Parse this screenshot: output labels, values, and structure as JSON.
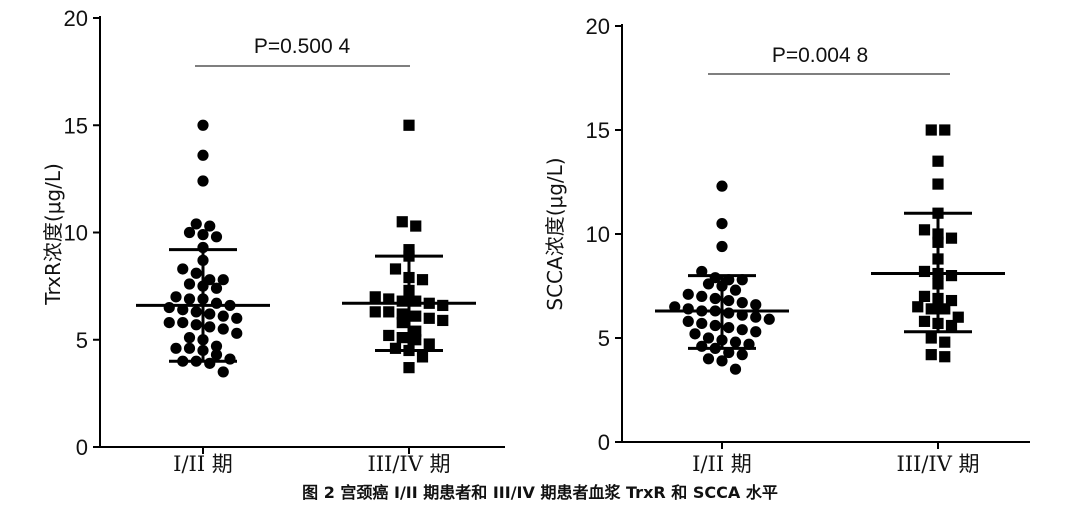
{
  "caption": "图 2   宫颈癌 I/II 期患者和 III/IV 期患者血浆 TrxR 和 SCCA 水平",
  "chart_data": [
    {
      "type": "scatter",
      "ylabel": "TrxR浓度(μg/L)",
      "ylim": [
        0,
        20
      ],
      "yticks": [
        "0",
        "5",
        "10",
        "15",
        "20"
      ],
      "categories": [
        "I/II 期",
        "III/IV 期"
      ],
      "p_label": "P=0.500 4",
      "series": [
        {
          "category": "I/II 期",
          "marker": "circle",
          "mean": 6.6,
          "upper": 9.2,
          "lower": 4.0,
          "values": [
            15.0,
            13.6,
            12.4,
            10.4,
            10.3,
            10.0,
            9.9,
            9.8,
            9.3,
            8.7,
            8.3,
            8.1,
            7.8,
            7.8,
            7.6,
            7.5,
            7.4,
            7.0,
            6.9,
            6.9,
            6.7,
            6.6,
            6.5,
            6.4,
            6.3,
            6.2,
            6.1,
            6.0,
            5.8,
            5.8,
            5.7,
            5.6,
            5.5,
            5.3,
            5.1,
            5.0,
            4.7,
            4.6,
            4.6,
            4.5,
            4.3,
            4.1,
            4.0,
            4.0,
            3.9,
            3.5
          ]
        },
        {
          "category": "III/IV 期",
          "marker": "square",
          "mean": 6.7,
          "upper": 8.9,
          "lower": 4.5,
          "values": [
            15.0,
            10.5,
            10.3,
            9.2,
            8.9,
            8.3,
            7.9,
            7.8,
            7.3,
            7.0,
            6.9,
            6.8,
            6.8,
            6.7,
            6.6,
            6.3,
            6.3,
            6.2,
            6.1,
            6.0,
            5.9,
            5.8,
            5.4,
            5.2,
            5.1,
            5.0,
            4.8,
            4.6,
            4.5,
            4.2,
            3.7
          ]
        }
      ]
    },
    {
      "type": "scatter",
      "ylabel": "SCCA浓度(μg/L)",
      "ylim": [
        0,
        20
      ],
      "yticks": [
        "0",
        "5",
        "10",
        "15",
        "20"
      ],
      "categories": [
        "I/II 期",
        "III/IV 期"
      ],
      "p_label": "P=0.004 8",
      "series": [
        {
          "category": "I/II 期",
          "marker": "circle",
          "mean": 6.3,
          "upper": 8.0,
          "lower": 4.5,
          "values": [
            12.3,
            10.5,
            9.4,
            8.2,
            7.9,
            7.8,
            7.8,
            7.6,
            7.5,
            7.3,
            7.1,
            7.0,
            6.9,
            6.8,
            6.7,
            6.6,
            6.5,
            6.4,
            6.3,
            6.3,
            6.2,
            6.1,
            6.0,
            5.9,
            5.8,
            5.7,
            5.6,
            5.5,
            5.4,
            5.3,
            5.2,
            5.0,
            4.9,
            4.8,
            4.7,
            4.6,
            4.5,
            4.3,
            4.2,
            4.0,
            3.9,
            3.5
          ]
        },
        {
          "category": "III/IV 期",
          "marker": "square",
          "mean": 8.1,
          "upper": 11.0,
          "lower": 5.3,
          "values": [
            15.0,
            15.0,
            13.5,
            12.4,
            11.0,
            10.2,
            10.0,
            9.8,
            9.6,
            8.8,
            8.2,
            8.1,
            8.0,
            7.6,
            7.0,
            6.9,
            6.8,
            6.5,
            6.4,
            6.4,
            6.0,
            5.8,
            5.7,
            5.6,
            5.0,
            4.8,
            4.2,
            4.1
          ]
        }
      ]
    }
  ]
}
